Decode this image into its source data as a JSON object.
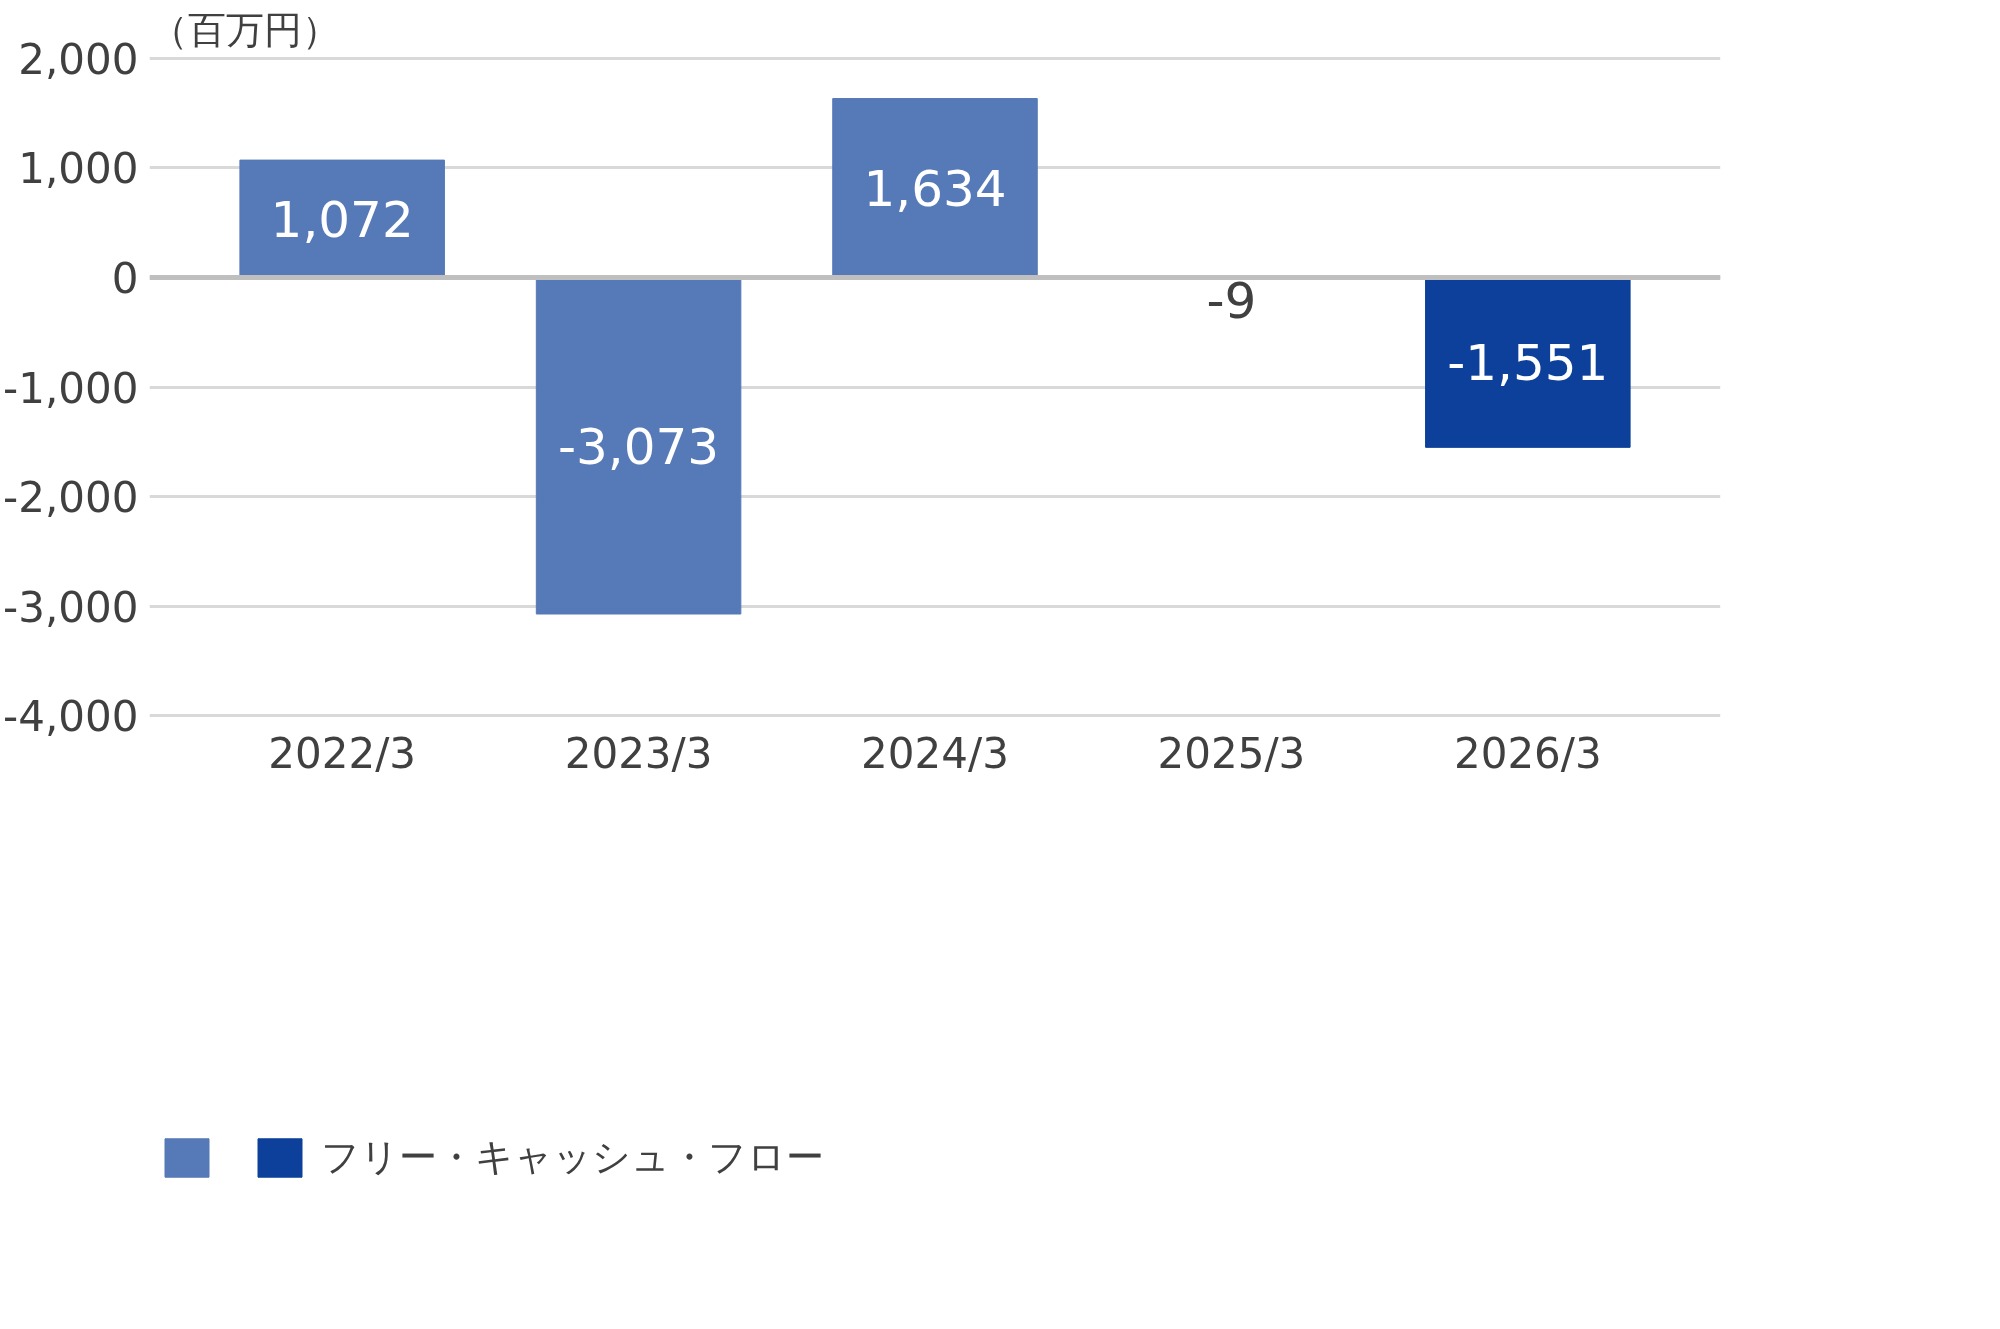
{
  "chart_data": {
    "type": "bar",
    "ylabel": "（百万円）",
    "categories": [
      "2022/3",
      "2023/3",
      "2024/3",
      "2025/3",
      "2026/3"
    ],
    "series": [
      {
        "name": "フリー・キャッシュ・フロー",
        "values": [
          1072,
          -3073,
          1634,
          -9,
          -1551
        ],
        "colors": [
          "#5679b7",
          "#5679b7",
          "#5679b7",
          "#5679b7",
          "#0c409a"
        ],
        "value_labels": [
          "1,072",
          "-3,073",
          "1,634",
          "-9",
          "-1,551"
        ]
      }
    ],
    "ylim": [
      -4000,
      2000
    ],
    "yticks": [
      {
        "value": -4000,
        "label": "-4,000"
      },
      {
        "value": -3000,
        "label": "-3,000"
      },
      {
        "value": -2000,
        "label": "-2,000"
      },
      {
        "value": -1000,
        "label": "-1,000"
      },
      0,
      {
        "value": 1000,
        "label": "1,000"
      },
      {
        "value": 2000,
        "label": "2,000"
      }
    ],
    "grid": "y",
    "legend": "bottom left"
  }
}
